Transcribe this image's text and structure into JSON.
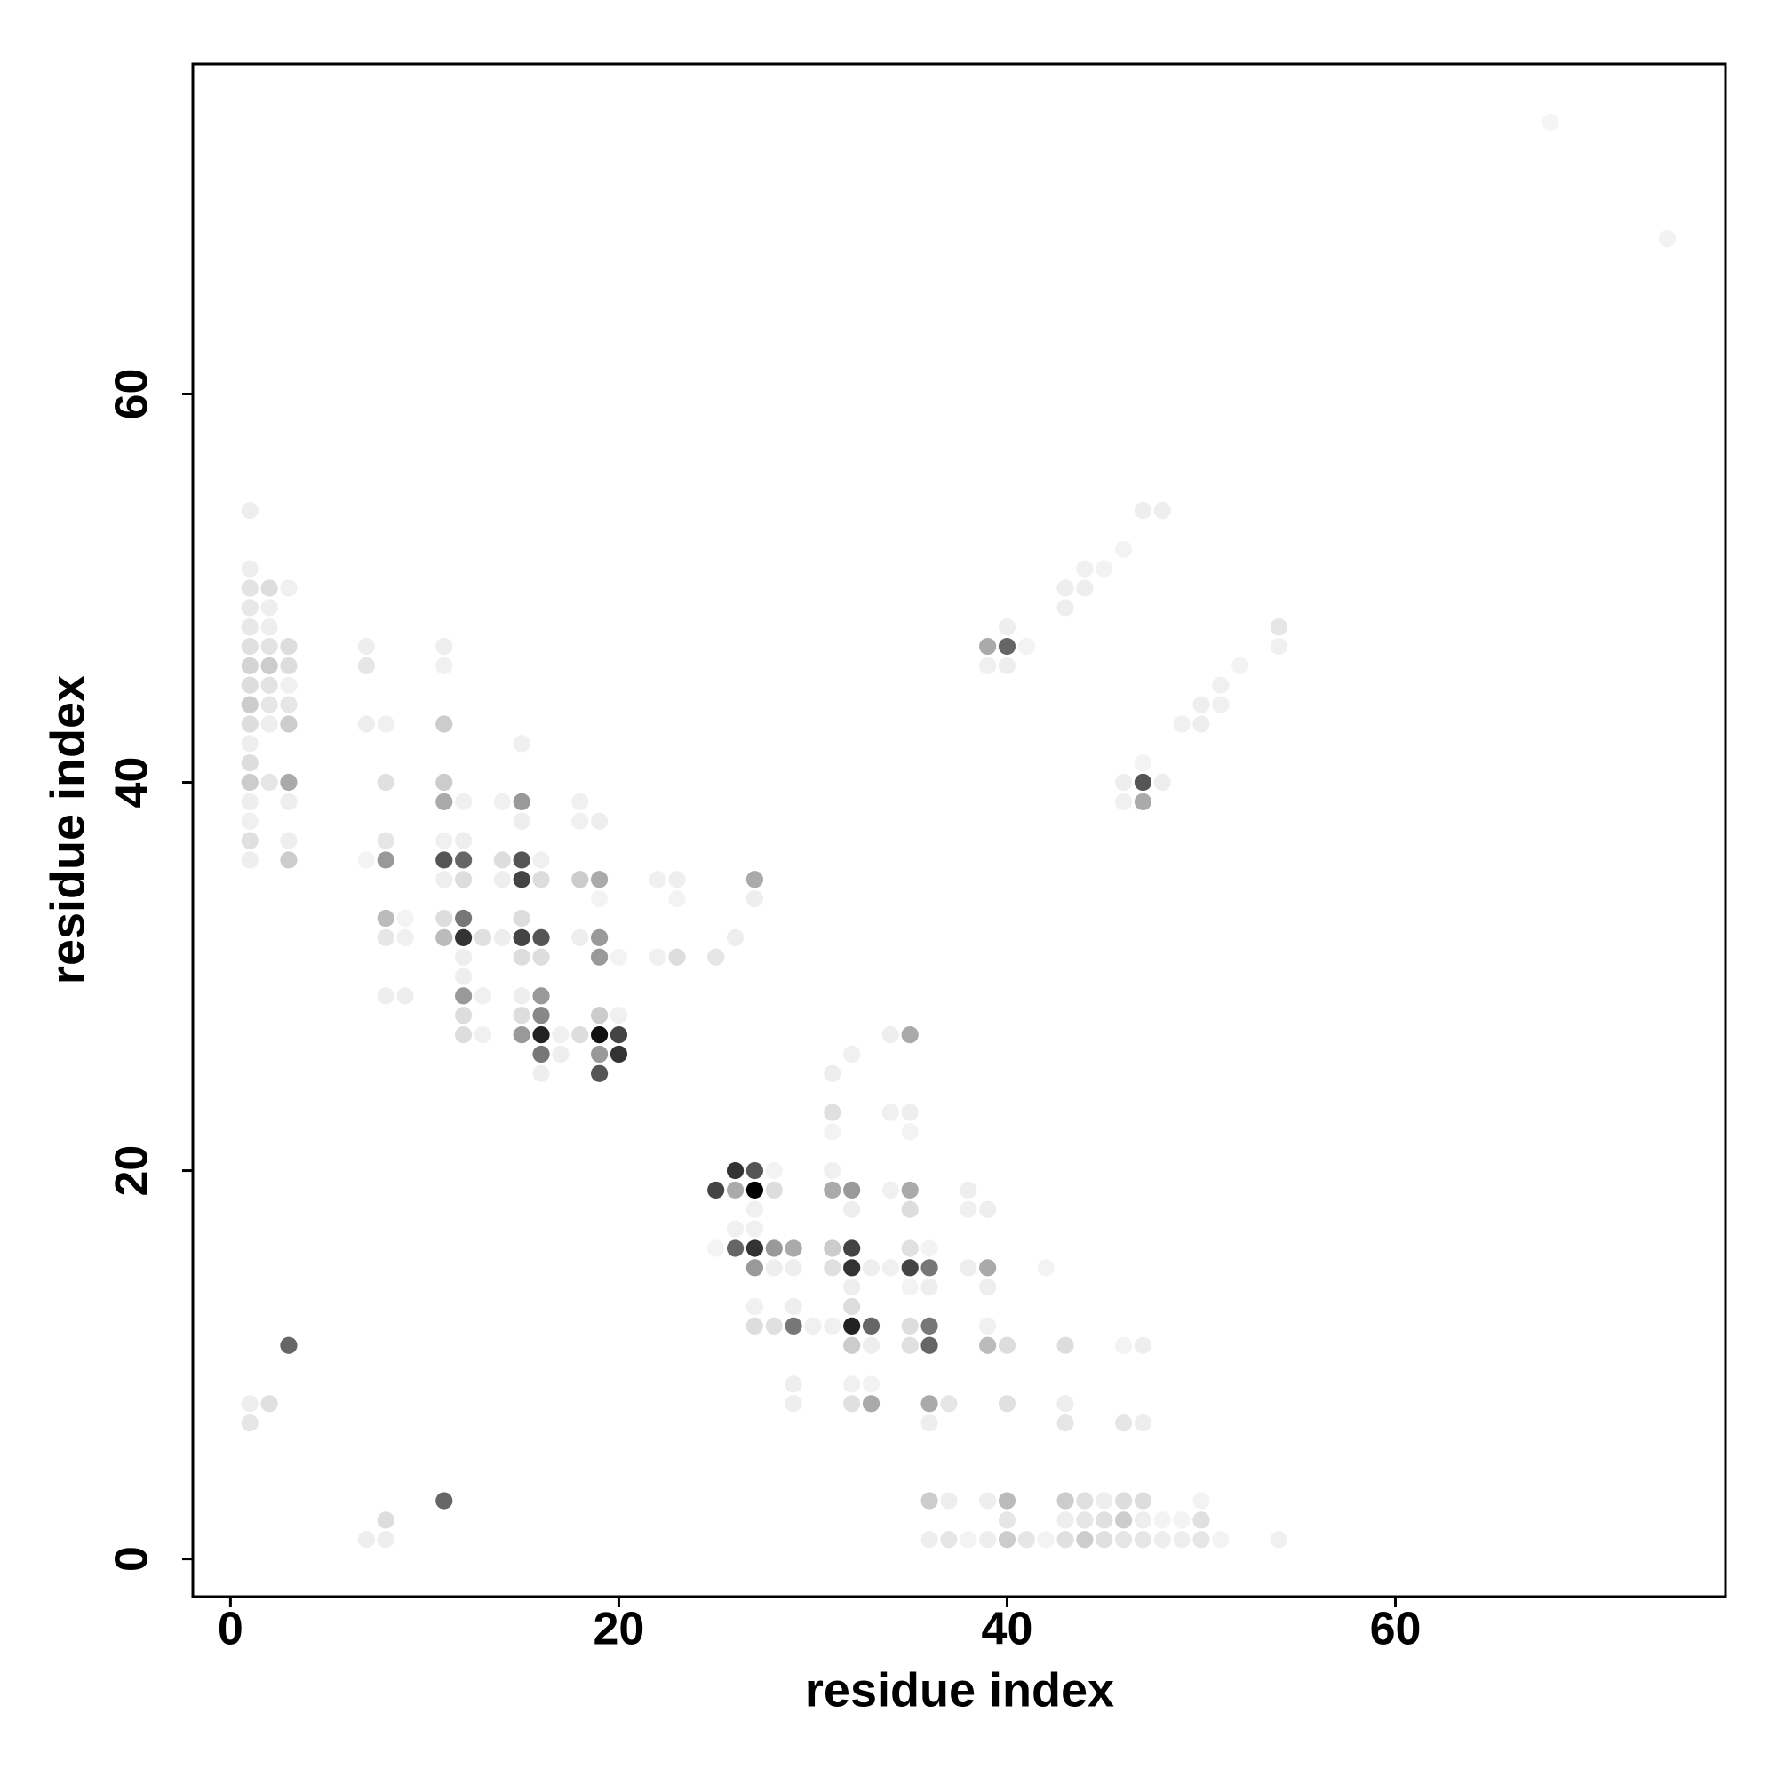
{
  "chart_data": {
    "type": "scatter",
    "xlabel": "residue index",
    "ylabel": "residue index",
    "xlim": [
      -1.94,
      77
    ],
    "ylim": [
      -1.94,
      77
    ],
    "xticks": [
      0,
      20,
      40,
      60
    ],
    "yticks": [
      0,
      20,
      40,
      60
    ],
    "x": [
      68,
      74,
      1,
      1,
      1,
      1,
      1,
      1,
      1,
      1,
      1,
      1,
      1,
      1,
      1,
      1,
      1,
      1,
      1,
      1,
      1,
      2,
      2,
      2,
      2,
      2,
      2,
      2,
      2,
      2,
      2,
      3,
      3,
      3,
      3,
      3,
      3,
      3,
      3,
      3,
      3,
      3,
      7,
      7,
      7,
      7,
      7,
      8,
      8,
      8,
      8,
      8,
      8,
      8,
      8,
      8,
      9,
      9,
      9,
      11,
      11,
      11,
      11,
      11,
      11,
      11,
      11,
      11,
      11,
      11,
      12,
      12,
      12,
      12,
      12,
      12,
      12,
      12,
      12,
      12,
      12,
      13,
      13,
      13,
      14,
      14,
      14,
      14,
      15,
      15,
      15,
      15,
      15,
      15,
      15,
      15,
      15,
      15,
      15,
      16,
      16,
      16,
      16,
      16,
      16,
      16,
      16,
      16,
      17,
      17,
      18,
      18,
      18,
      18,
      18,
      19,
      19,
      19,
      19,
      19,
      19,
      19,
      19,
      19,
      20,
      20,
      20,
      20,
      22,
      22,
      23,
      23,
      23,
      25,
      25,
      25,
      26,
      26,
      26,
      26,
      26,
      27,
      27,
      27,
      27,
      27,
      27,
      27,
      27,
      27,
      27,
      28,
      28,
      28,
      28,
      28,
      29,
      29,
      29,
      29,
      29,
      29,
      30,
      31,
      31,
      31,
      31,
      31,
      31,
      31,
      31,
      32,
      32,
      32,
      32,
      32,
      32,
      32,
      32,
      32,
      32,
      32,
      33,
      33,
      33,
      33,
      33,
      34,
      34,
      34,
      34,
      35,
      35,
      35,
      35,
      35,
      35,
      35,
      35,
      35,
      35,
      36,
      36,
      36,
      36,
      36,
      36,
      36,
      36,
      36,
      37,
      37,
      37,
      38,
      38,
      38,
      38,
      39,
      39,
      39,
      39,
      39,
      39,
      39,
      40,
      40,
      40,
      40,
      40,
      41,
      42,
      42,
      43,
      43,
      43,
      43,
      43,
      43,
      44,
      44,
      44,
      45,
      45,
      45,
      46,
      46,
      46,
      46,
      46,
      47,
      47,
      47,
      47,
      47,
      48,
      48,
      49,
      49,
      50,
      50,
      50,
      51,
      54,
      39,
      40,
      39,
      40,
      40,
      41,
      46,
      47,
      47,
      46,
      47,
      48,
      43,
      44,
      43,
      44,
      45,
      46,
      47,
      48,
      49,
      50,
      50,
      51,
      51,
      52,
      54,
      54
    ],
    "values": [
      74,
      68,
      54,
      51,
      50,
      49,
      48,
      47,
      46,
      45,
      44,
      43,
      42,
      41,
      40,
      39,
      38,
      37,
      36,
      8,
      7,
      50,
      49,
      48,
      47,
      46,
      45,
      44,
      43,
      40,
      8,
      50,
      47,
      46,
      45,
      44,
      43,
      40,
      39,
      37,
      36,
      11,
      47,
      46,
      43,
      36,
      1,
      43,
      40,
      37,
      36,
      33,
      32,
      29,
      2,
      1,
      33,
      32,
      29,
      47,
      46,
      43,
      40,
      39,
      37,
      36,
      35,
      33,
      32,
      3,
      39,
      37,
      36,
      35,
      33,
      32,
      31,
      30,
      29,
      28,
      27,
      32,
      29,
      27,
      39,
      36,
      35,
      32,
      42,
      39,
      38,
      36,
      35,
      33,
      32,
      31,
      29,
      28,
      27,
      36,
      35,
      32,
      31,
      29,
      28,
      27,
      26,
      25,
      27,
      26,
      39,
      38,
      35,
      32,
      27,
      38,
      35,
      34,
      32,
      31,
      28,
      27,
      26,
      25,
      31,
      28,
      27,
      26,
      35,
      31,
      35,
      34,
      31,
      31,
      19,
      16,
      32,
      20,
      19,
      17,
      16,
      35,
      34,
      20,
      19,
      18,
      17,
      16,
      15,
      13,
      12,
      20,
      19,
      16,
      15,
      12,
      16,
      15,
      13,
      12,
      9,
      8,
      12,
      25,
      23,
      22,
      20,
      19,
      16,
      15,
      12,
      26,
      19,
      18,
      16,
      15,
      14,
      13,
      12,
      11,
      9,
      8,
      15,
      12,
      11,
      9,
      8,
      27,
      23,
      19,
      15,
      27,
      23,
      22,
      19,
      18,
      16,
      15,
      14,
      12,
      11,
      16,
      15,
      14,
      12,
      11,
      8,
      7,
      3,
      1,
      8,
      3,
      1,
      19,
      18,
      15,
      1,
      18,
      15,
      14,
      12,
      11,
      3,
      1,
      11,
      8,
      3,
      2,
      1,
      1,
      15,
      1,
      11,
      8,
      7,
      3,
      2,
      1,
      3,
      2,
      1,
      3,
      2,
      1,
      11,
      7,
      3,
      2,
      1,
      11,
      7,
      3,
      2,
      1,
      2,
      1,
      2,
      1,
      3,
      2,
      1,
      1,
      1,
      47,
      47,
      46,
      46,
      48,
      47,
      40,
      40,
      39,
      39,
      41,
      40,
      50,
      50,
      49,
      51,
      51,
      52,
      54,
      54,
      43,
      43,
      44,
      44,
      45,
      46,
      48,
      47
    ],
    "colors": [
      "#f5f5f5",
      "#f2f2f2",
      "#eee",
      "#eee",
      "#e3e3e3",
      "#e8e8e8",
      "#e8e8e8",
      "#e0e0e0",
      "#d4d4d4",
      "#ddd",
      "#ccc",
      "#ddd",
      "#eee",
      "#ddd",
      "#ccc",
      "#eee",
      "#f0f0f0",
      "#e0e0e0",
      "#eee",
      "#eee",
      "#e6e6e6",
      "#ddd",
      "#eee",
      "#eee",
      "#e3e3e3",
      "#ccc",
      "#e3e3e3",
      "#e6e6e6",
      "#eee",
      "#e6e6e6",
      "#e0e0e0",
      "#f0f0f0",
      "#ddd",
      "#ddd",
      "#f0f0f0",
      "#e6e6e6",
      "#ccc",
      "#aaa",
      "#eee",
      "#eee",
      "#ccc",
      "#666",
      "#eee",
      "#e6e6e6",
      "#eee",
      "#f3f3f3",
      "#eee",
      "#f0f0f0",
      "#e0e0e0",
      "#e6e6e6",
      "#999",
      "#bbb",
      "#e6e6e6",
      "#eee",
      "#ddd",
      "#eee",
      "#f3f3f3",
      "#f0f0f0",
      "#eee",
      "#eee",
      "#f0f0f0",
      "#ccc",
      "#ccc",
      "#aaa",
      "#f0f0f0",
      "#555",
      "#eee",
      "#ddd",
      "#bbb",
      "#666",
      "#f0f0f0",
      "#eee",
      "#666",
      "#ddd",
      "#777",
      "#333",
      "#eee",
      "#eee",
      "#999",
      "#ddd",
      "#ddd",
      "#e0e0e0",
      "#f0f0f0",
      "#f0f0f0",
      "#f0f0f0",
      "#ddd",
      "#eee",
      "#eee",
      "#f0f0f0",
      "#999",
      "#eee",
      "#555",
      "#444",
      "#ddd",
      "#444",
      "#ddd",
      "#eee",
      "#ddd",
      "#999",
      "#f0f0f0",
      "#ddd",
      "#555",
      "#ddd",
      "#999",
      "#888",
      "#222",
      "#777",
      "#eee",
      "#f0f0f0",
      "#eee",
      "#f0f0f0",
      "#f0f0f0",
      "#ccc",
      "#eee",
      "#ddd",
      "#eee",
      "#aaa",
      "#f3f3f3",
      "#999",
      "#999",
      "#ccc",
      "#111",
      "#999",
      "#555",
      "#f3f3f3",
      "#f0f0f0",
      "#444",
      "#333",
      "#f0f0f0",
      "#f0f0f0",
      "#eee",
      "#f3f3f3",
      "#ddd",
      "#e6e6e6",
      "#444",
      "#f3f3f3",
      "#eee",
      "#333",
      "#aaa",
      "#f0f0f0",
      "#666",
      "#aaa",
      "#eee",
      "#555",
      "#000",
      "#f0f0f0",
      "#f0f0f0",
      "#333",
      "#999",
      "#f0f0f0",
      "#ddd",
      "#f3f3f3",
      "#ddd",
      "#999",
      "#eee",
      "#e0e0e0",
      "#aaa",
      "#eee",
      "#eee",
      "#777",
      "#eee",
      "#eee",
      "#f0f0f0",
      "#eee",
      "#e0e0e0",
      "#f3f3f3",
      "#f0f0f0",
      "#aaa",
      "#ccc",
      "#e0e0e0",
      "#f0f0f0",
      "#f0f0f0",
      "#999",
      "#eee",
      "#444",
      "#333",
      "#eee",
      "#ddd",
      "#222",
      "#ccc",
      "#f0f0f0",
      "#e0e0e0",
      "#eee",
      "#666",
      "#eee",
      "#f3f3f3",
      "#aaa",
      "#eee",
      "#f0f0f0",
      "#f0f0f0",
      "#f0f0f0",
      "#aaa",
      "#eee",
      "#f3f3f3",
      "#aaa",
      "#ddd",
      "#e0e0e0",
      "#444",
      "#f3f3f3",
      "#ddd",
      "#e0e0e0",
      "#f3f3f3",
      "#777",
      "#eee",
      "#777",
      "#666",
      "#aaa",
      "#eee",
      "#ccc",
      "#eee",
      "#e6e6e6",
      "#eee",
      "#e6e6e6",
      "#eee",
      "#f0f0f0",
      "#eee",
      "#f3f3f3",
      "#eee",
      "#aaa",
      "#eee",
      "#f0f0f0",
      "#bbb",
      "#eee",
      "#eee",
      "#ddd",
      "#e0e0e0",
      "#bbb",
      "#e6e6e6",
      "#ccc",
      "#e6e6e6",
      "#f3f3f3",
      "#f3f3f3",
      "#ddd",
      "#eee",
      "#e6e6e6",
      "#ccc",
      "#eee",
      "#e0e0e0",
      "#e0e0e0",
      "#e6e6e6",
      "#ccc",
      "#eee",
      "#e0e0e0",
      "#e0e0e0",
      "#f3f3f3",
      "#e6e6e6",
      "#ddd",
      "#ccc",
      "#e6e6e6",
      "#eee",
      "#eee",
      "#ddd",
      "#eee",
      "#e6e6e6",
      "#f3f3f3",
      "#eee",
      "#f3f3f3",
      "#eee",
      "#f3f3f3",
      "#e0e0e0",
      "#e6e6e6",
      "#f3f3f3",
      "#f0f0f0",
      "#aaa",
      "#666",
      "#f0f0f0",
      "#eee",
      "#eee",
      "#f3f3f3",
      "#eee",
      "#555",
      "#aaa",
      "#f0f0f0",
      "#f3f3f3",
      "#eee",
      "#eee",
      "#eee",
      "#eee",
      "#f0f0f0",
      "#f3f3f3",
      "#f3f3f3",
      "#eee",
      "#eee",
      "#f0f0f0",
      "#eee",
      "#eee",
      "#f0f0f0",
      "#f0f0f0",
      "#f3f3f3",
      "#e6e6e6",
      "#f0f0f0"
    ]
  }
}
